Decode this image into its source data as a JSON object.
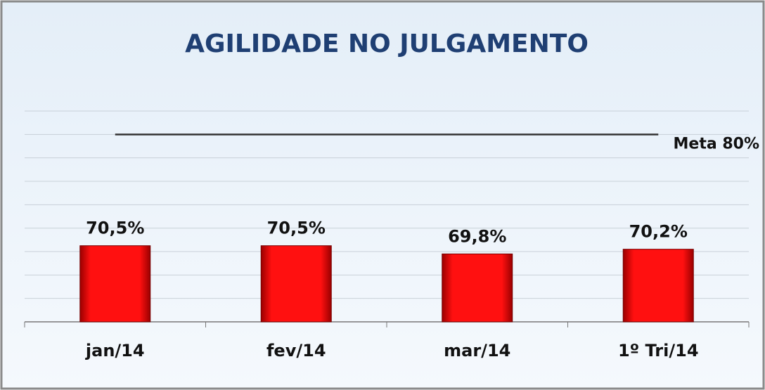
{
  "chart_data": {
    "type": "bar",
    "title": "AGILIDADE NO JULGAMENTO",
    "categories": [
      "jan/14",
      "fev/14",
      "mar/14",
      "1º Tri/14"
    ],
    "values": [
      70.5,
      70.5,
      69.8,
      70.2
    ],
    "value_labels": [
      "70,5%",
      "70,5%",
      "69,8%",
      "70,2%"
    ],
    "color": "#e30000",
    "target": {
      "label": "Meta 80%",
      "value": 80,
      "color": "#333333"
    },
    "ylim": [
      64,
      82
    ],
    "yticks": [
      64,
      66,
      68,
      70,
      72,
      74,
      76,
      78,
      80,
      82
    ],
    "grid": true
  }
}
